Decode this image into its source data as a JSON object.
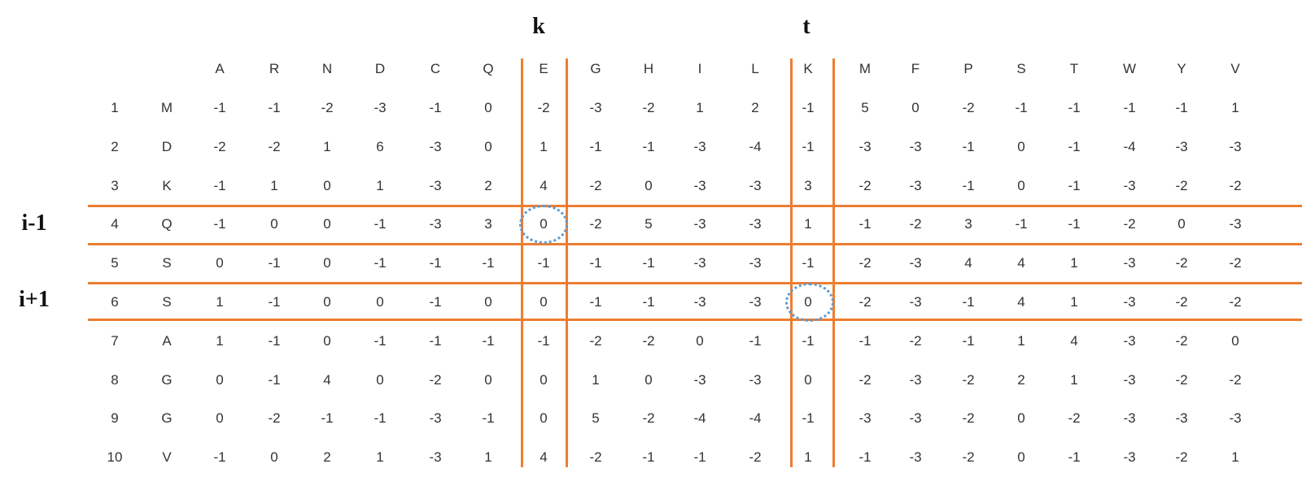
{
  "labels": {
    "k": "k",
    "t": "t",
    "i_minus_1": "i-1",
    "i_plus_1": "i+1"
  },
  "columns": [
    "A",
    "R",
    "N",
    "D",
    "C",
    "Q",
    "E",
    "G",
    "H",
    "I",
    "L",
    "K",
    "M",
    "F",
    "P",
    "S",
    "T",
    "W",
    "Y",
    "V"
  ],
  "rows": [
    {
      "num": "1",
      "res": "M",
      "values": [
        "-1",
        "-1",
        "-2",
        "-3",
        "-1",
        "0",
        "-2",
        "-3",
        "-2",
        "1",
        "2",
        "-1",
        "5",
        "0",
        "-2",
        "-1",
        "-1",
        "-1",
        "-1",
        "1"
      ]
    },
    {
      "num": "2",
      "res": "D",
      "values": [
        "-2",
        "-2",
        "1",
        "6",
        "-3",
        "0",
        "1",
        "-1",
        "-1",
        "-3",
        "-4",
        "-1",
        "-3",
        "-3",
        "-1",
        "0",
        "-1",
        "-4",
        "-3",
        "-3"
      ]
    },
    {
      "num": "3",
      "res": "K",
      "values": [
        "-1",
        "1",
        "0",
        "1",
        "-3",
        "2",
        "4",
        "-2",
        "0",
        "-3",
        "-3",
        "3",
        "-2",
        "-3",
        "-1",
        "0",
        "-1",
        "-3",
        "-2",
        "-2"
      ]
    },
    {
      "num": "4",
      "res": "Q",
      "values": [
        "-1",
        "0",
        "0",
        "-1",
        "-3",
        "3",
        "0",
        "-2",
        "5",
        "-3",
        "-3",
        "1",
        "-1",
        "-2",
        "3",
        "-1",
        "-1",
        "-2",
        "0",
        "-3"
      ]
    },
    {
      "num": "5",
      "res": "S",
      "values": [
        "0",
        "-1",
        "0",
        "-1",
        "-1",
        "-1",
        "-1",
        "-1",
        "-1",
        "-3",
        "-3",
        "-1",
        "-2",
        "-3",
        "4",
        "4",
        "1",
        "-3",
        "-2",
        "-2"
      ]
    },
    {
      "num": "6",
      "res": "S",
      "values": [
        "1",
        "-1",
        "0",
        "0",
        "-1",
        "0",
        "0",
        "-1",
        "-1",
        "-3",
        "-3",
        "0",
        "-2",
        "-3",
        "-1",
        "4",
        "1",
        "-3",
        "-2",
        "-2"
      ]
    },
    {
      "num": "7",
      "res": "A",
      "values": [
        "1",
        "-1",
        "0",
        "-1",
        "-1",
        "-1",
        "-1",
        "-2",
        "-2",
        "0",
        "-1",
        "-1",
        "-1",
        "-2",
        "-1",
        "1",
        "4",
        "-3",
        "-2",
        "0"
      ]
    },
    {
      "num": "8",
      "res": "G",
      "values": [
        "0",
        "-1",
        "4",
        "0",
        "-2",
        "0",
        "0",
        "1",
        "0",
        "-3",
        "-3",
        "0",
        "-2",
        "-3",
        "-2",
        "2",
        "1",
        "-3",
        "-2",
        "-2"
      ]
    },
    {
      "num": "9",
      "res": "G",
      "values": [
        "0",
        "-2",
        "-1",
        "-1",
        "-3",
        "-1",
        "0",
        "5",
        "-2",
        "-4",
        "-4",
        "-1",
        "-3",
        "-3",
        "-2",
        "0",
        "-2",
        "-3",
        "-3",
        "-3"
      ]
    },
    {
      "num": "10",
      "res": "V",
      "values": [
        "-1",
        "0",
        "2",
        "1",
        "-3",
        "1",
        "4",
        "-2",
        "-1",
        "-1",
        "-2",
        "1",
        "-1",
        "-3",
        "-2",
        "0",
        "-1",
        "-3",
        "-2",
        "1"
      ]
    }
  ],
  "highlighted_columns": [
    "E",
    "K"
  ],
  "highlighted_rows": [
    "4",
    "6"
  ],
  "circled_cells": [
    {
      "row": "4",
      "column": "E",
      "value": "0"
    },
    {
      "row": "6",
      "column": "K",
      "value": "0"
    }
  ],
  "colors": {
    "grid_lines": "#ED7D31",
    "circle": "#5B9BD5",
    "text": "#333333"
  }
}
